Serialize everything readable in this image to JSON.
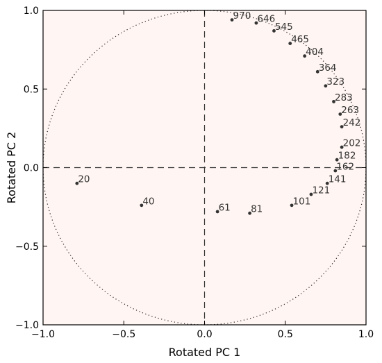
{
  "chart_data": {
    "type": "scatter",
    "title": "",
    "xlabel": "Rotated PC 1",
    "ylabel": "Rotated PC 2",
    "xlim": [
      -1.0,
      1.0
    ],
    "ylim": [
      -1.0,
      1.0
    ],
    "x_ticks": [
      "−1.0",
      "−0.5",
      "0.0",
      "0.5",
      "1.0"
    ],
    "y_ticks": [
      "−1.0",
      "−0.5",
      "0.0",
      "0.5",
      "1.0"
    ],
    "x_tick_values": [
      -1.0,
      -0.5,
      0.0,
      0.5,
      1.0
    ],
    "y_tick_values": [
      -1.0,
      -0.5,
      0.0,
      0.5,
      1.0
    ],
    "grid": false,
    "unit_circle": true,
    "reference_lines": {
      "x": 0.0,
      "y": 0.0
    },
    "colors": {
      "background": "#fff5f2",
      "points": "#333333",
      "text": "#333333"
    },
    "points": [
      {
        "label": "20",
        "x": -0.79,
        "y": -0.1
      },
      {
        "label": "40",
        "x": -0.39,
        "y": -0.24
      },
      {
        "label": "61",
        "x": 0.08,
        "y": -0.28
      },
      {
        "label": "81",
        "x": 0.28,
        "y": -0.29
      },
      {
        "label": "101",
        "x": 0.54,
        "y": -0.24
      },
      {
        "label": "121",
        "x": 0.66,
        "y": -0.17
      },
      {
        "label": "141",
        "x": 0.76,
        "y": -0.1
      },
      {
        "label": "162",
        "x": 0.81,
        "y": -0.02
      },
      {
        "label": "182",
        "x": 0.82,
        "y": 0.05
      },
      {
        "label": "202",
        "x": 0.85,
        "y": 0.13
      },
      {
        "label": "242",
        "x": 0.85,
        "y": 0.26
      },
      {
        "label": "263",
        "x": 0.84,
        "y": 0.34
      },
      {
        "label": "283",
        "x": 0.8,
        "y": 0.42
      },
      {
        "label": "323",
        "x": 0.75,
        "y": 0.52
      },
      {
        "label": "364",
        "x": 0.7,
        "y": 0.61
      },
      {
        "label": "404",
        "x": 0.62,
        "y": 0.71
      },
      {
        "label": "465",
        "x": 0.53,
        "y": 0.79
      },
      {
        "label": "545",
        "x": 0.43,
        "y": 0.87
      },
      {
        "label": "646",
        "x": 0.32,
        "y": 0.92
      },
      {
        "label": "970",
        "x": 0.17,
        "y": 0.94
      }
    ]
  }
}
